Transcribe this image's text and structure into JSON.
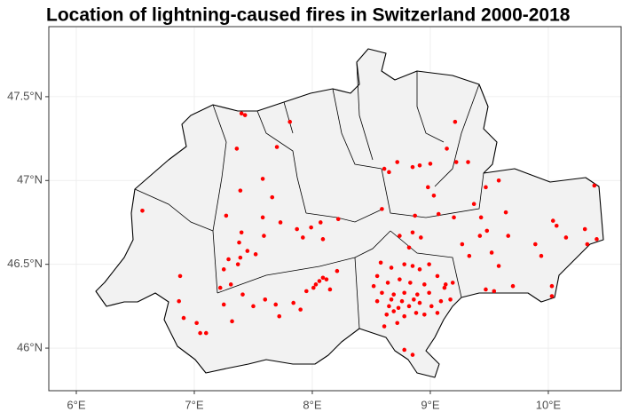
{
  "chart_data": {
    "type": "scatter",
    "title": "Location of lightning-caused fires in Switzerland 2000-2018",
    "xlim": [
      5.767,
      10.617
    ],
    "ylim": [
      45.746,
      47.918
    ],
    "xticks": [
      {
        "value": 6,
        "label": "6°E"
      },
      {
        "value": 7,
        "label": "7°E"
      },
      {
        "value": 8,
        "label": "8°E"
      },
      {
        "value": 9,
        "label": "9°E"
      },
      {
        "value": 10,
        "label": "10°E"
      }
    ],
    "yticks": [
      {
        "value": 46,
        "label": "46°N"
      },
      {
        "value": 46.5,
        "label": "46.5°N"
      },
      {
        "value": 47,
        "label": "47°N"
      },
      {
        "value": 47.5,
        "label": "47.5°N"
      }
    ],
    "grid": true,
    "series": [
      {
        "color": "#ff0000",
        "x": [
          6.56,
          7.4,
          7.43,
          7.81,
          7.36,
          7.7,
          7.58,
          7.39,
          7.66,
          7.27,
          7.58,
          7.73,
          7.59,
          7.4,
          7.38,
          7.45,
          7.52,
          7.39,
          7.29,
          7.25,
          7.37,
          7.31,
          7.22,
          6.88,
          6.87,
          6.91,
          7.02,
          7.05,
          7.1,
          7.25,
          7.32,
          7.41,
          7.5,
          7.6,
          7.69,
          7.72,
          7.84,
          7.9,
          7.95,
          8.01,
          8.03,
          8.06,
          8.09,
          8.12,
          8.15,
          8.21,
          7.87,
          7.92,
          7.99,
          8.07,
          8.09,
          8.22,
          8.59,
          8.61,
          8.72,
          8.65,
          8.85,
          8.91,
          9.0,
          9.21,
          9.14,
          9.22,
          9.32,
          8.98,
          9.03,
          9.07,
          8.87,
          8.85,
          8.74,
          8.82,
          8.92,
          9.2,
          9.27,
          9.33,
          9.47,
          9.58,
          9.64,
          9.37,
          9.43,
          9.42,
          9.48,
          9.66,
          9.52,
          9.58,
          9.47,
          9.54,
          9.7,
          9.89,
          9.94,
          10.04,
          10.07,
          10.15,
          10.31,
          10.33,
          10.39,
          10.41,
          10.03,
          10.03,
          8.58,
          8.67,
          8.78,
          8.85,
          8.91,
          8.55,
          8.64,
          8.74,
          8.83,
          8.95,
          9.06,
          8.59,
          8.69,
          8.78,
          8.89,
          8.99,
          9.12,
          9.19,
          8.55,
          8.65,
          8.73,
          8.82,
          8.91,
          9.01,
          9.09,
          9.17,
          8.63,
          8.69,
          8.78,
          8.88,
          8.95,
          9.06,
          8.61,
          8.72,
          8.78,
          8.85,
          8.52,
          8.99,
          9.13,
          8.67,
          8.76,
          8.86
        ],
        "y": [
          46.82,
          47.4,
          47.39,
          47.35,
          47.19,
          47.2,
          47.01,
          46.94,
          46.9,
          46.79,
          46.78,
          46.75,
          46.67,
          46.69,
          46.63,
          46.58,
          46.56,
          46.54,
          46.53,
          46.47,
          46.5,
          46.38,
          46.36,
          46.43,
          46.28,
          46.18,
          46.15,
          46.09,
          46.09,
          46.26,
          46.16,
          46.32,
          46.25,
          46.29,
          46.26,
          46.19,
          46.27,
          46.23,
          46.34,
          46.36,
          46.38,
          46.4,
          46.42,
          46.41,
          46.35,
          46.46,
          46.71,
          46.66,
          46.72,
          46.75,
          46.65,
          46.77,
          46.83,
          47.07,
          47.11,
          47.05,
          47.08,
          47.09,
          47.1,
          47.35,
          47.19,
          47.11,
          47.11,
          46.96,
          46.91,
          46.8,
          46.79,
          46.69,
          46.67,
          46.6,
          46.66,
          46.78,
          46.62,
          46.55,
          46.96,
          47.0,
          46.81,
          46.86,
          46.78,
          46.67,
          46.7,
          46.67,
          46.57,
          46.49,
          46.35,
          46.34,
          46.37,
          46.62,
          46.55,
          46.76,
          46.73,
          46.66,
          46.71,
          46.62,
          46.97,
          46.65,
          46.37,
          46.31,
          46.51,
          46.48,
          46.5,
          46.49,
          46.47,
          46.43,
          46.39,
          46.41,
          46.39,
          46.38,
          46.43,
          46.33,
          46.32,
          46.33,
          46.32,
          46.33,
          46.36,
          46.39,
          46.28,
          46.25,
          46.24,
          46.25,
          46.27,
          46.25,
          46.28,
          46.29,
          46.2,
          46.22,
          46.19,
          46.21,
          46.2,
          46.21,
          46.13,
          46.15,
          45.99,
          45.96,
          46.37,
          46.5,
          46.38,
          46.29,
          46.28,
          46.29
        ]
      }
    ]
  }
}
